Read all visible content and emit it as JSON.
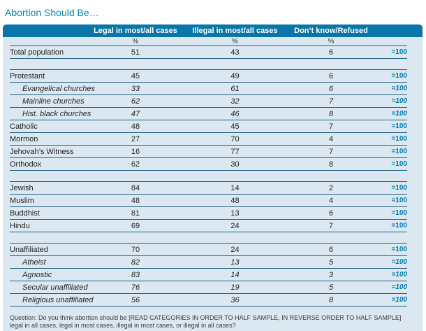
{
  "colors": {
    "title-color": "#0088b4",
    "header-bg": "#0a75a8",
    "panel-bg": "#dbe8f1",
    "line-color": "#1f5e80",
    "total-color": "#0079ae"
  },
  "chart_data": {
    "type": "table",
    "title": "Abortion Should Be…",
    "columns": [
      "Legal in most/all cases",
      "Illegal in most/all cases",
      "Don’t know/Refused"
    ],
    "unit_symbol": "%",
    "rows": [
      {
        "label": "Total population",
        "values": [
          51,
          43,
          6
        ],
        "total": "=100",
        "indent": false,
        "spacer_before": false
      },
      {
        "label": "Protestant",
        "values": [
          45,
          49,
          6
        ],
        "total": "=100",
        "indent": false,
        "spacer_before": true
      },
      {
        "label": "Evangelical churches",
        "values": [
          33,
          61,
          6
        ],
        "total": "=100",
        "indent": true,
        "spacer_before": false
      },
      {
        "label": "Mainline churches",
        "values": [
          62,
          32,
          7
        ],
        "total": "=100",
        "indent": true,
        "spacer_before": false
      },
      {
        "label": "Hist. black churches",
        "values": [
          47,
          46,
          8
        ],
        "total": "=100",
        "indent": true,
        "spacer_before": false
      },
      {
        "label": "Catholic",
        "values": [
          48,
          45,
          7
        ],
        "total": "=100",
        "indent": false,
        "spacer_before": false
      },
      {
        "label": "Mormon",
        "values": [
          27,
          70,
          4
        ],
        "total": "=100",
        "indent": false,
        "spacer_before": false
      },
      {
        "label": "Jehovah’s Witness",
        "values": [
          16,
          77,
          7
        ],
        "total": "=100",
        "indent": false,
        "spacer_before": false
      },
      {
        "label": "Orthodox",
        "values": [
          62,
          30,
          8
        ],
        "total": "=100",
        "indent": false,
        "spacer_before": false
      },
      {
        "label": "Jewish",
        "values": [
          84,
          14,
          2
        ],
        "total": "=100",
        "indent": false,
        "spacer_before": true
      },
      {
        "label": "Muslim",
        "values": [
          48,
          48,
          4
        ],
        "total": "=100",
        "indent": false,
        "spacer_before": false
      },
      {
        "label": "Buddhist",
        "values": [
          81,
          13,
          6
        ],
        "total": "=100",
        "indent": false,
        "spacer_before": false
      },
      {
        "label": "Hindu",
        "values": [
          69,
          24,
          7
        ],
        "total": "=100",
        "indent": false,
        "spacer_before": false
      },
      {
        "label": "Unaffiliated",
        "values": [
          70,
          24,
          6
        ],
        "total": "=100",
        "indent": false,
        "spacer_before": true
      },
      {
        "label": "Atheist",
        "values": [
          82,
          13,
          5
        ],
        "total": "=100",
        "indent": true,
        "spacer_before": false
      },
      {
        "label": "Agnostic",
        "values": [
          83,
          14,
          3
        ],
        "total": "=100",
        "indent": true,
        "spacer_before": false
      },
      {
        "label": "Secular unaffiliated",
        "values": [
          76,
          19,
          5
        ],
        "total": "=100",
        "indent": true,
        "spacer_before": false
      },
      {
        "label": "Religious unaffiliated",
        "values": [
          56,
          36,
          8
        ],
        "total": "=100",
        "indent": true,
        "spacer_before": false
      }
    ],
    "footnote": "Question: Do you think abortion should be [READ CATEGORIES IN ORDER TO HALF SAMPLE, IN REVERSE ORDER TO HALF SAMPLE] legal in all cases, legal in most cases, illegal in most cases, or illegal in all cases?"
  }
}
